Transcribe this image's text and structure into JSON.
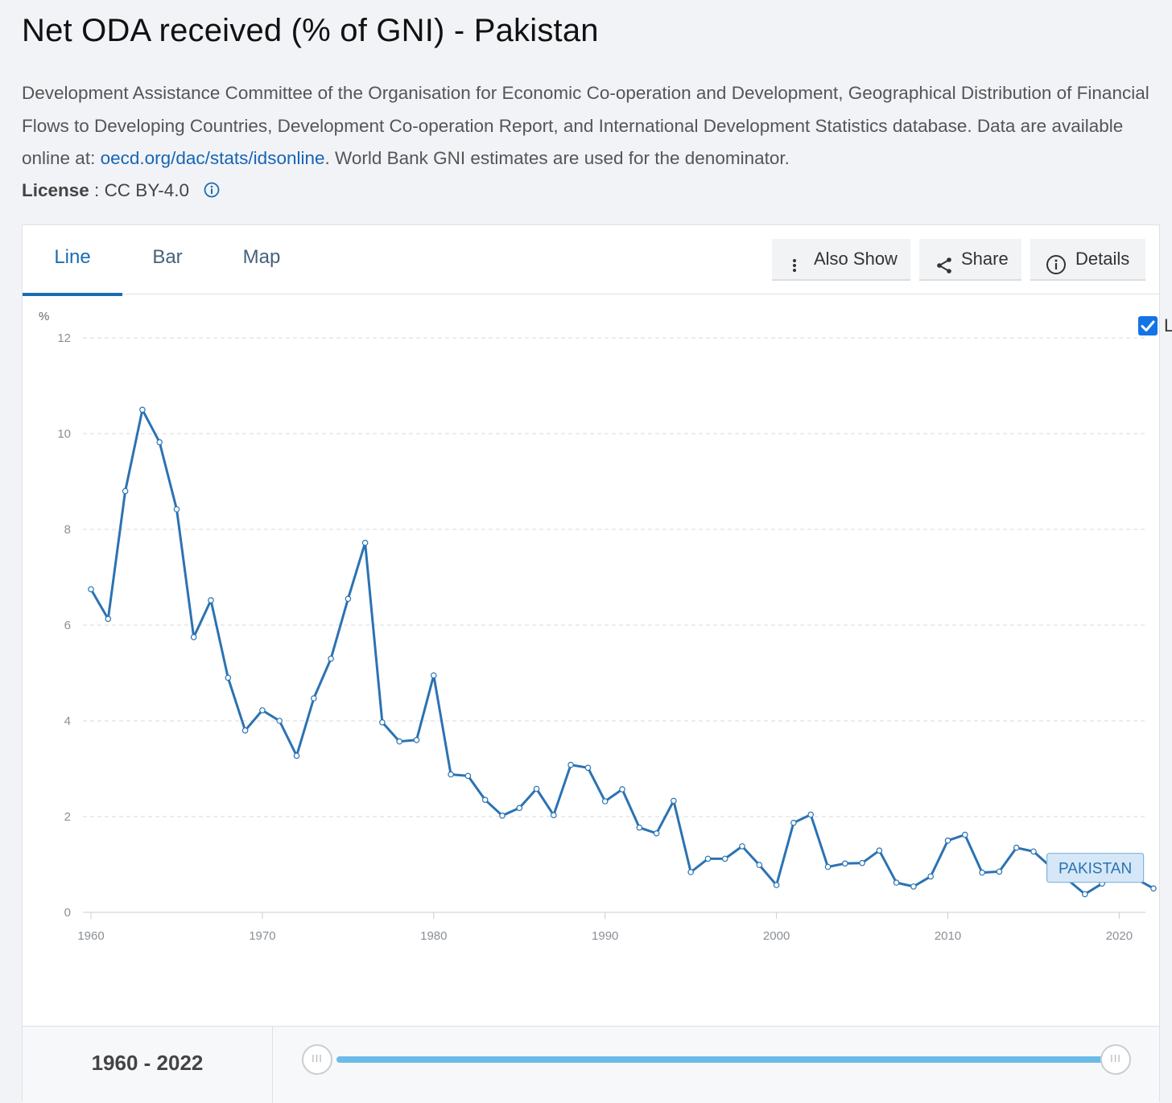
{
  "page": {
    "title": "Net ODA received (% of GNI) - Pakistan",
    "description_before_link": "Development Assistance Committee of the Organisation for Economic Co-operation and Development, Geographical Distribution of Financial Flows to Developing Countries, Development Co-operation Report, and International Development Statistics database. Data are available online at: ",
    "description_link": "oecd.org/dac/stats/idsonline",
    "description_after_link": ". World Bank GNI estimates are used for the denominator.",
    "license_label": "License",
    "license_sep": " : ",
    "license_value": "CC BY-4.0"
  },
  "tabs": [
    {
      "label": "Line",
      "active": true
    },
    {
      "label": "Bar",
      "active": false
    },
    {
      "label": "Map",
      "active": false
    }
  ],
  "toolbar": {
    "also_show": "Also Show",
    "share": "Share",
    "details": "Details"
  },
  "label_toggle": {
    "text": "LABEL",
    "checked": true
  },
  "range": {
    "text": "1960 - 2022",
    "start_handle": "III",
    "end_handle": "III"
  },
  "colors": {
    "line": "#2b72b3",
    "accent": "#1a6cb3",
    "slider": "#6bbbe8"
  },
  "chart_data": {
    "type": "line",
    "title": "Net ODA received (% of GNI) - Pakistan",
    "ylabel": "%",
    "xlabel": "",
    "ylim": [
      0,
      12
    ],
    "xlim": [
      1960,
      2022
    ],
    "yticks": [
      0,
      2,
      4,
      6,
      8,
      10,
      12
    ],
    "xticks": [
      1960,
      1970,
      1980,
      1990,
      2000,
      2010,
      2020
    ],
    "grid": true,
    "series": [
      {
        "name": "PAKISTAN",
        "x": [
          1960,
          1961,
          1962,
          1963,
          1964,
          1965,
          1966,
          1967,
          1968,
          1969,
          1970,
          1971,
          1972,
          1973,
          1974,
          1975,
          1976,
          1977,
          1978,
          1979,
          1980,
          1981,
          1982,
          1983,
          1984,
          1985,
          1986,
          1987,
          1988,
          1989,
          1990,
          1991,
          1992,
          1993,
          1994,
          1995,
          1996,
          1997,
          1998,
          1999,
          2000,
          2001,
          2002,
          2003,
          2004,
          2005,
          2006,
          2007,
          2008,
          2009,
          2010,
          2011,
          2012,
          2013,
          2014,
          2015,
          2016,
          2017,
          2018,
          2019,
          2020,
          2021,
          2022
        ],
        "values": [
          6.75,
          6.13,
          8.8,
          10.5,
          9.82,
          8.42,
          5.75,
          6.52,
          4.9,
          3.8,
          4.22,
          4.0,
          3.27,
          4.47,
          5.3,
          6.55,
          7.72,
          3.97,
          3.57,
          3.6,
          4.95,
          2.88,
          2.85,
          2.35,
          2.02,
          2.18,
          2.58,
          2.03,
          3.08,
          3.02,
          2.32,
          2.57,
          1.77,
          1.65,
          2.33,
          0.84,
          1.12,
          1.12,
          1.38,
          0.99,
          0.57,
          1.87,
          2.04,
          0.95,
          1.02,
          1.03,
          1.29,
          0.62,
          0.54,
          0.75,
          1.5,
          1.62,
          0.83,
          0.85,
          1.35,
          1.27,
          0.95,
          0.68,
          0.38,
          0.6,
          0.8,
          0.7,
          0.5
        ]
      }
    ],
    "series_label": "PAKISTAN"
  }
}
